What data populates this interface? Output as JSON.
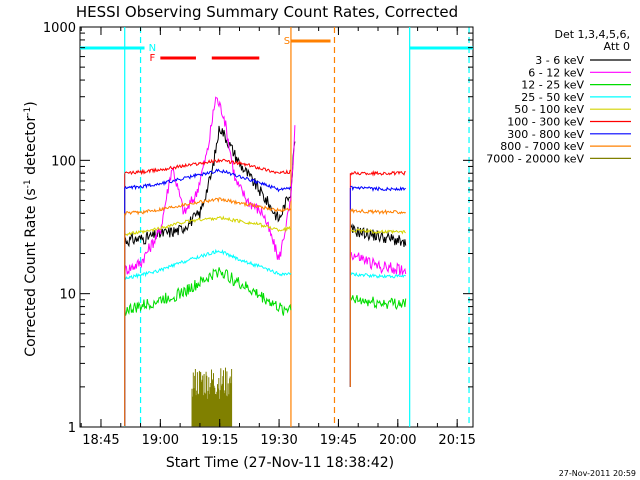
{
  "chart_data": {
    "type": "line",
    "title": "HESSI Observing Summary Count Rates, Corrected",
    "xlabel": "Start Time (27-Nov-11 18:38:42)",
    "ylabel_main": "Corrected Count Rate (s",
    "ylabel_exp1": "-1",
    "ylabel_mid": " detector",
    "ylabel_exp2": "-1",
    "ylabel_end": ")",
    "yscale": "log",
    "ylim": [
      1,
      1000
    ],
    "xlim": [
      "18:39",
      "20:19"
    ],
    "xticks": [
      "18:45",
      "19:00",
      "19:15",
      "19:30",
      "19:45",
      "20:00",
      "20:15"
    ],
    "yticks": [
      "1",
      "10",
      "100",
      "1000"
    ],
    "timestamp": "27-Nov-2011 20:59",
    "legend_title": [
      "Det 1,3,4,5,6,",
      "Att 0"
    ],
    "legend_placement": "right",
    "series": [
      {
        "name": "3 - 6 keV",
        "color": "#000000",
        "points": [
          [
            "18:51",
            25
          ],
          [
            "18:56",
            26
          ],
          [
            "19:00",
            28
          ],
          [
            "19:05",
            30
          ],
          [
            "19:10",
            40
          ],
          [
            "19:13",
            80
          ],
          [
            "19:15",
            180
          ],
          [
            "19:17",
            140
          ],
          [
            "19:20",
            95
          ],
          [
            "19:25",
            60
          ],
          [
            "19:30",
            36
          ],
          [
            "19:33",
            60
          ],
          [
            "19:34",
            150
          ]
        ],
        "points2": [
          [
            "19:48",
            30
          ],
          [
            "19:55",
            27
          ],
          [
            "20:00",
            25
          ],
          [
            "20:02",
            23
          ]
        ]
      },
      {
        "name": "6 - 12 keV",
        "color": "#ff00ff",
        "points": [
          [
            "18:51",
            15
          ],
          [
            "18:55",
            17
          ],
          [
            "19:00",
            30
          ],
          [
            "19:03",
            90
          ],
          [
            "19:06",
            40
          ],
          [
            "19:09",
            55
          ],
          [
            "19:12",
            120
          ],
          [
            "19:14",
            300
          ],
          [
            "19:16",
            220
          ],
          [
            "19:19",
            70
          ],
          [
            "19:22",
            50
          ],
          [
            "19:26",
            40
          ],
          [
            "19:30",
            18
          ],
          [
            "19:33",
            50
          ],
          [
            "19:34",
            170
          ]
        ],
        "points2": [
          [
            "19:48",
            20
          ],
          [
            "19:55",
            16
          ],
          [
            "20:02",
            15
          ]
        ]
      },
      {
        "name": "12 - 25 keV",
        "color": "#00dd00",
        "points": [
          [
            "18:51",
            7.5
          ],
          [
            "18:55",
            8
          ],
          [
            "19:00",
            9
          ],
          [
            "19:05",
            10
          ],
          [
            "19:10",
            12
          ],
          [
            "19:15",
            15
          ],
          [
            "19:18",
            13
          ],
          [
            "19:22",
            11
          ],
          [
            "19:27",
            9
          ],
          [
            "19:31",
            7.5
          ],
          [
            "19:33",
            8
          ]
        ],
        "points2": [
          [
            "19:48",
            9
          ],
          [
            "19:55",
            8.5
          ],
          [
            "20:02",
            8.5
          ]
        ]
      },
      {
        "name": "25 - 50 keV",
        "color": "#00ffff",
        "points": [
          [
            "18:51",
            13
          ],
          [
            "18:56",
            14
          ],
          [
            "19:00",
            15
          ],
          [
            "19:05",
            17
          ],
          [
            "19:10",
            19
          ],
          [
            "19:15",
            21
          ],
          [
            "19:20",
            18
          ],
          [
            "19:25",
            16
          ],
          [
            "19:30",
            14
          ],
          [
            "19:33",
            14
          ]
        ],
        "points2": [
          [
            "19:48",
            14
          ],
          [
            "19:55",
            13.5
          ],
          [
            "20:02",
            13.5
          ]
        ]
      },
      {
        "name": "50 - 100 keV",
        "color": "#d4d400",
        "points": [
          [
            "18:51",
            28
          ],
          [
            "18:56",
            29
          ],
          [
            "19:00",
            31
          ],
          [
            "19:05",
            34
          ],
          [
            "19:10",
            36
          ],
          [
            "19:15",
            37
          ],
          [
            "19:20",
            35
          ],
          [
            "19:25",
            33
          ],
          [
            "19:30",
            30
          ],
          [
            "19:33",
            31
          ]
        ],
        "points2": [
          [
            "19:48",
            30
          ],
          [
            "19:55",
            29
          ],
          [
            "20:02",
            29
          ]
        ]
      },
      {
        "name": "100 - 300 keV",
        "color": "#ff0000",
        "points": [
          [
            "18:51",
            80
          ],
          [
            "18:56",
            82
          ],
          [
            "19:00",
            85
          ],
          [
            "19:05",
            90
          ],
          [
            "19:10",
            95
          ],
          [
            "19:15",
            100
          ],
          [
            "19:20",
            95
          ],
          [
            "19:25",
            88
          ],
          [
            "19:30",
            80
          ],
          [
            "19:33",
            82
          ]
        ],
        "points2": [
          [
            "19:48",
            80
          ],
          [
            "19:55",
            80
          ],
          [
            "20:02",
            80
          ]
        ]
      },
      {
        "name": "300 - 800 keV",
        "color": "#0000ff",
        "points": [
          [
            "18:51",
            62
          ],
          [
            "18:56",
            64
          ],
          [
            "19:00",
            67
          ],
          [
            "19:05",
            72
          ],
          [
            "19:10",
            78
          ],
          [
            "19:15",
            84
          ],
          [
            "19:20",
            76
          ],
          [
            "19:25",
            68
          ],
          [
            "19:30",
            60
          ],
          [
            "19:33",
            62
          ]
        ],
        "points2": [
          [
            "19:48",
            62
          ],
          [
            "19:55",
            61
          ],
          [
            "20:02",
            61
          ]
        ]
      },
      {
        "name": "800 - 7000 keV",
        "color": "#ff8000",
        "points": [
          [
            "18:51",
            40
          ],
          [
            "18:56",
            41
          ],
          [
            "19:00",
            43
          ],
          [
            "19:05",
            46
          ],
          [
            "19:10",
            49
          ],
          [
            "19:15",
            51
          ],
          [
            "19:20",
            48
          ],
          [
            "19:25",
            45
          ],
          [
            "19:30",
            42
          ],
          [
            "19:33",
            43
          ]
        ],
        "points2": [
          [
            "19:48",
            42
          ],
          [
            "19:55",
            41
          ],
          [
            "20:02",
            41
          ]
        ]
      },
      {
        "name": "7000 - 20000 keV",
        "color": "#808000",
        "points": [
          [
            "19:08",
            2.5
          ],
          [
            "19:10",
            2.2
          ],
          [
            "19:12",
            2.8
          ],
          [
            "19:14",
            2.3
          ],
          [
            "19:16",
            2.6
          ],
          [
            "19:18",
            2.4
          ]
        ],
        "points2": []
      }
    ],
    "flags": [
      {
        "label": "N",
        "color": "#00ffff",
        "label_at": "18:58"
      },
      {
        "label": "F",
        "color": "#ff0000",
        "label_at": "18:58"
      },
      {
        "label": "S",
        "color": "#ff8000",
        "label_at": "19:32"
      }
    ],
    "attenuator_bars": [
      {
        "color": "#00ffff",
        "from": "18:39",
        "to": "18:56"
      },
      {
        "color": "#00ffff",
        "from": "20:03",
        "to": "20:19"
      },
      {
        "color": "#ff0000",
        "from": "19:00",
        "to": "19:09"
      },
      {
        "color": "#ff0000",
        "from": "19:13",
        "to": "19:25"
      },
      {
        "color": "#ff8000",
        "from": "19:33",
        "to": "19:43"
      }
    ],
    "vertical_lines": [
      {
        "at": "18:51",
        "color": "#00ffff",
        "style": "solid"
      },
      {
        "at": "18:55",
        "color": "#00ffff",
        "style": "dashed"
      },
      {
        "at": "19:33",
        "color": "#ff8000",
        "style": "solid"
      },
      {
        "at": "19:44",
        "color": "#ff8000",
        "style": "dashed"
      },
      {
        "at": "20:03",
        "color": "#00ffff",
        "style": "solid"
      },
      {
        "at": "20:18",
        "color": "#00ffff",
        "style": "dashed"
      }
    ]
  }
}
